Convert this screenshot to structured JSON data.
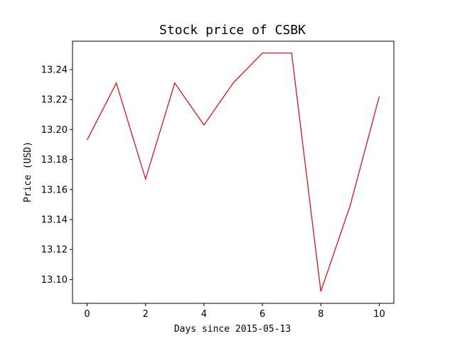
{
  "chart_data": {
    "type": "line",
    "title": "Stock price of CSBK",
    "xlabel": "Days since 2015-05-13",
    "ylabel": "Price (USD)",
    "x": [
      0,
      1,
      2,
      3,
      4,
      5,
      6,
      7,
      8,
      9,
      10
    ],
    "series": [
      {
        "color": "#e00000",
        "values": [
          13.193,
          13.231,
          13.167,
          13.231,
          13.203,
          13.231,
          13.251,
          13.251,
          13.092,
          13.149,
          13.222
        ]
      }
    ],
    "xlim": [
      -0.5,
      10.5
    ],
    "ylim": [
      13.0841,
      13.2589
    ],
    "xticks": [
      0,
      2,
      4,
      6,
      8,
      10
    ],
    "xtick_labels": [
      "0",
      "2",
      "4",
      "6",
      "8",
      "10"
    ],
    "yticks": [
      13.1,
      13.12,
      13.14,
      13.16,
      13.18,
      13.2,
      13.22,
      13.24
    ],
    "ytick_labels": [
      "13.10",
      "13.12",
      "13.14",
      "13.16",
      "13.18",
      "13.20",
      "13.22",
      "13.24"
    ],
    "grid": false,
    "legend": "none"
  }
}
